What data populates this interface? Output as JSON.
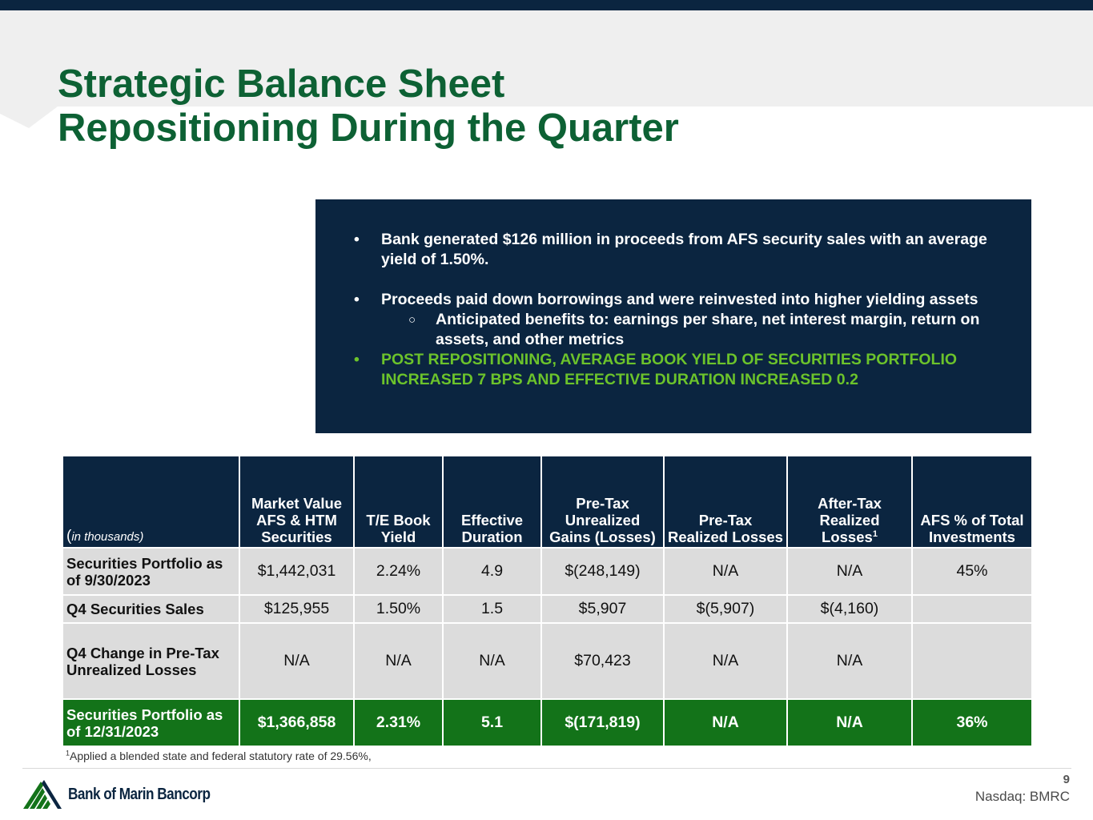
{
  "slide": {
    "title_line1": "Strategic Balance Sheet",
    "title_line2": "Repositioning During the Quarter",
    "page_number": "9",
    "ticker": "Nasdaq: BMRC",
    "logo_text": "Bank of Marin Bancorp"
  },
  "info_box": {
    "bullet1": "Bank generated $126 million in proceeds from AFS security sales with an average yield of 1.50%.",
    "bullet2": "Proceeds paid down borrowings and were reinvested into higher yielding assets",
    "sub_bullet": "Anticipated benefits to: earnings per share, net interest margin, return on assets, and other metrics",
    "bullet3": "POST REPOSITIONING, AVERAGE BOOK YIELD OF SECURITIES PORTFOLIO INCREASED 7 BPS AND EFFECTIVE DURATION INCREASED 0.2"
  },
  "table": {
    "corner_paren_open": "(",
    "corner_label": "in thousands)",
    "headers": [
      "Market Value AFS & HTM Securities",
      "T/E Book Yield",
      "Effective Duration",
      "Pre-Tax Unrealized Gains (Losses)",
      "Pre-Tax Realized Losses",
      "After-Tax Realized Losses",
      "AFS % of Total Investments"
    ],
    "footnote_marker": "1",
    "rows": [
      {
        "label": "Securities Portfolio as of 9/30/2023",
        "cells": [
          "$1,442,031",
          "2.24%",
          "4.9",
          "$(248,149)",
          "N/A",
          "N/A",
          "45%"
        ]
      },
      {
        "label": "Q4 Securities Sales",
        "cells": [
          "$125,955",
          "1.50%",
          "1.5",
          "$5,907",
          "$(5,907)",
          "$(4,160)",
          ""
        ]
      },
      {
        "label": "Q4 Change in Pre-Tax Unrealized Losses",
        "cells": [
          "N/A",
          "N/A",
          "N/A",
          "$70,423",
          "N/A",
          "N/A",
          ""
        ]
      },
      {
        "label": "Securities Portfolio as of 12/31/2023",
        "cells": [
          "$1,366,858",
          "2.31%",
          "5.1",
          "$(171,819)",
          "N/A",
          "N/A",
          "36%"
        ]
      }
    ]
  },
  "footnote": {
    "marker": "1",
    "text": "Applied a blended state and federal statutory rate of 29.56%,"
  },
  "colors": {
    "navy": "#0b2540",
    "title_green": "#0d6134",
    "highlight_green": "#6cc32b",
    "total_row_green": "#137319",
    "cell_gray": "#dcdcdc"
  }
}
